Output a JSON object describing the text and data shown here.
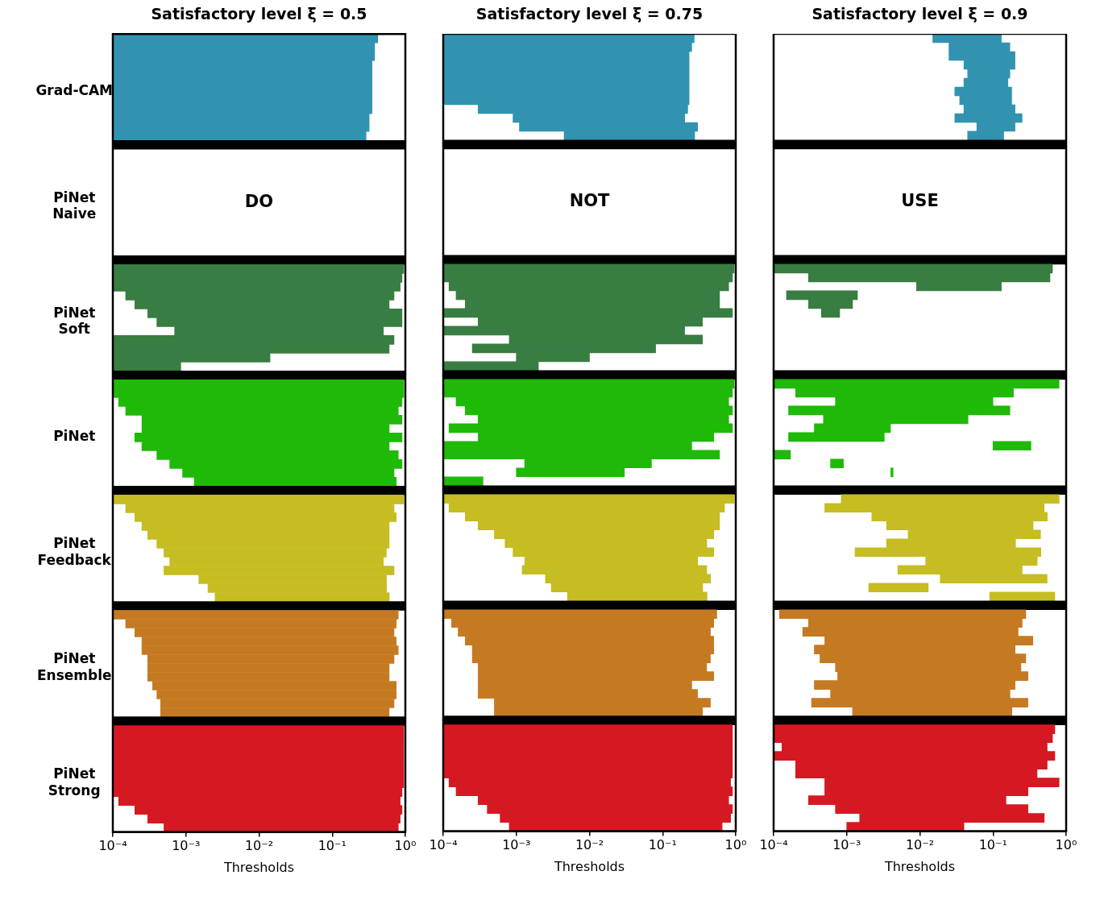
{
  "chart_data": [
    {
      "type": "bar",
      "orientation": "horizontal",
      "log": "x",
      "title": "Satisfactory level ξ = 0.5",
      "xlabel": "Thresholds",
      "annotations": [
        "DO"
      ],
      "xlim": [
        0.0001,
        1
      ],
      "xticks": [
        {
          "value": 0.0001,
          "label": "10⁻⁴"
        },
        {
          "value": 0.001,
          "label": "10⁻³"
        },
        {
          "value": 0.01,
          "label": "10⁻²"
        },
        {
          "value": 0.1,
          "label": "10⁻¹"
        },
        {
          "value": 1,
          "label": "10⁰"
        }
      ],
      "categories": [
        null,
        null,
        null,
        null,
        null,
        null,
        "Grad-CAM",
        null,
        null,
        null,
        null,
        null,
        null,
        null,
        null,
        null,
        null,
        null,
        null,
        "PiNet Naive",
        null,
        null,
        null,
        null,
        null,
        null,
        null,
        null,
        null,
        null,
        null,
        null,
        "PiNet Soft",
        null,
        null,
        null,
        null,
        null,
        null,
        null,
        null,
        null,
        null,
        null,
        null,
        "PiNet",
        null,
        null,
        null,
        null,
        null,
        null,
        null,
        null,
        null,
        null,
        null,
        null,
        "PiNet Feedback",
        null,
        null,
        null,
        null,
        null,
        null,
        null,
        null,
        null,
        null,
        null,
        null,
        "PiNet Ensemble",
        null,
        null,
        null,
        null,
        null,
        null,
        null,
        null,
        null,
        null,
        null,
        null,
        "PiNet Strong",
        null,
        null,
        null,
        null,
        null
      ],
      "values": [
        0.42,
        0.38,
        0.38,
        0.35,
        0.35,
        0.35,
        0.35,
        0.35,
        0.35,
        0.32,
        0.32,
        0.29,
        0.9999,
        null,
        null,
        null,
        null,
        null,
        null,
        null,
        null,
        null,
        null,
        null,
        null,
        0.9999,
        0.95,
        0.9,
        0.85,
        0.7,
        0.6,
        0.9,
        0.9,
        0.5,
        0.7,
        0.6,
        0.014,
        0.00075,
        0.9999,
        0.95,
        0.95,
        0.9,
        0.8,
        0.9,
        0.6,
        0.9,
        0.6,
        0.8,
        0.9,
        0.7,
        0.75,
        0.9999,
        0.95,
        0.7,
        0.75,
        0.6,
        0.6,
        0.6,
        0.55,
        0.5,
        0.7,
        0.55,
        0.55,
        0.6,
        0.9999,
        0.8,
        0.75,
        0.7,
        0.75,
        0.8,
        0.7,
        0.6,
        0.6,
        0.75,
        0.75,
        0.7,
        0.6,
        0.9999,
        0.95,
        0.95,
        0.95,
        0.95,
        0.95,
        0.95,
        0.95,
        0.9,
        0.85,
        0.9,
        0.85,
        0.8
      ],
      "base": [
        0.0001,
        0.0001,
        0.0001,
        0.0001,
        0.0001,
        0.0001,
        0.0001,
        0.0001,
        0.0001,
        0.0001,
        0.0001,
        0.0001,
        0.0001,
        null,
        null,
        null,
        null,
        null,
        null,
        null,
        null,
        null,
        null,
        null,
        null,
        0.0001,
        0.0001,
        0.0001,
        0.0001,
        0.00015,
        0.0002,
        0.0003,
        0.0004,
        0.0007,
        0.0001,
        0.0001,
        0.0001,
        0.0001,
        0.0001,
        0.0001,
        0.0001,
        0.00012,
        0.00015,
        0.00025,
        0.00025,
        0.0002,
        0.00025,
        0.0004,
        0.0006,
        0.0009,
        0.0013,
        0.0001,
        0.0001,
        0.00015,
        0.0002,
        0.00025,
        0.0003,
        0.0004,
        0.0005,
        0.0006,
        0.0005,
        0.0015,
        0.002,
        0.0025,
        0.0001,
        0.0001,
        0.00015,
        0.0002,
        0.00025,
        0.00025,
        0.0003,
        0.0003,
        0.0003,
        0.00035,
        0.0004,
        0.00045,
        0.00045,
        0.0001,
        0.0001,
        0.0001,
        0.0001,
        0.0001,
        0.0001,
        0.0001,
        0.0001,
        0.0001,
        0.00012,
        0.0002,
        0.0003,
        0.0005
      ],
      "colors": [
        "#3293b1",
        "#3293b1",
        "#3293b1",
        "#3293b1",
        "#3293b1",
        "#3293b1",
        "#3293b1",
        "#3293b1",
        "#3293b1",
        "#3293b1",
        "#3293b1",
        "#3293b1",
        "#000000",
        null,
        null,
        null,
        null,
        null,
        null,
        null,
        null,
        null,
        null,
        null,
        null,
        "#000000",
        "#387d41",
        "#387d41",
        "#387d41",
        "#387d41",
        "#387d41",
        "#387d41",
        "#387d41",
        "#387d41",
        "#387d41",
        "#387d41",
        "#387d41",
        "#387d41",
        "#000000",
        "#1fb908",
        "#1fb908",
        "#1fb908",
        "#1fb908",
        "#1fb908",
        "#1fb908",
        "#1fb908",
        "#1fb908",
        "#1fb908",
        "#1fb908",
        "#1fb908",
        "#1fb908",
        "#000000",
        "#c5bd22",
        "#c5bd22",
        "#c5bd22",
        "#c5bd22",
        "#c5bd22",
        "#c5bd22",
        "#c5bd22",
        "#c5bd22",
        "#c5bd22",
        "#c5bd22",
        "#c5bd22",
        "#c5bd22",
        "#000000",
        "#c57a22",
        "#c57a22",
        "#c57a22",
        "#c57a22",
        "#c57a22",
        "#c57a22",
        "#c57a22",
        "#c57a22",
        "#c57a22",
        "#c57a22",
        "#c57a22",
        "#c57a22",
        "#000000",
        "#d51922",
        "#d51922",
        "#d51922",
        "#d51922",
        "#d51922",
        "#d51922",
        "#d51922",
        "#d51922",
        "#d51922",
        "#d51922",
        "#d51922",
        "#d51922"
      ]
    },
    {
      "type": "bar",
      "orientation": "horizontal",
      "log": "x",
      "title": "Satisfactory level ξ = 0.75",
      "xlabel": "Thresholds",
      "annotations": [
        "NOT"
      ],
      "xlim": [
        0.0001,
        1
      ],
      "xticks": [
        {
          "value": 0.0001,
          "label": "10⁻⁴"
        },
        {
          "value": 0.001,
          "label": "10⁻³"
        },
        {
          "value": 0.01,
          "label": "10⁻²"
        },
        {
          "value": 0.1,
          "label": "10⁻¹"
        },
        {
          "value": 1,
          "label": "10⁰"
        }
      ],
      "tick_labels": "x",
      "categories": [
        null,
        null,
        null,
        null,
        null,
        null,
        null,
        null,
        null,
        null,
        null,
        null,
        null,
        null,
        null,
        null,
        null,
        null,
        null,
        null,
        null,
        null,
        null,
        null,
        null,
        null,
        null,
        null,
        null,
        null,
        null,
        null,
        null,
        null,
        null,
        null,
        null,
        null,
        null,
        null,
        null,
        null,
        null,
        null,
        null,
        null,
        null,
        null,
        null,
        null,
        null,
        null,
        null,
        null,
        null,
        null,
        null,
        null,
        null,
        null,
        null,
        null,
        null,
        null,
        null,
        null,
        null,
        null,
        null,
        null,
        null,
        null,
        null,
        null,
        null,
        null,
        null,
        null,
        null,
        null,
        null,
        null,
        null,
        null,
        null,
        null,
        null,
        null,
        null,
        null
      ],
      "values": [
        0.27,
        0.25,
        0.23,
        0.23,
        0.23,
        0.23,
        0.23,
        0.23,
        0.22,
        0.2,
        0.3,
        0.27,
        0.9999,
        null,
        null,
        null,
        null,
        null,
        null,
        null,
        null,
        null,
        null,
        null,
        null,
        0.9999,
        0.95,
        0.9,
        0.8,
        0.6,
        0.6,
        0.9,
        0.35,
        0.2,
        0.35,
        0.08,
        0.009,
        0.0019,
        0.9999,
        0.95,
        0.9,
        0.8,
        0.9,
        0.8,
        0.9,
        0.5,
        0.25,
        0.6,
        0.069,
        0.029,
        0.00025,
        0.9999,
        0.95,
        0.7,
        0.6,
        0.6,
        0.5,
        0.4,
        0.5,
        0.3,
        0.4,
        0.45,
        0.35,
        0.4,
        0.9999,
        0.55,
        0.5,
        0.45,
        0.5,
        0.5,
        0.45,
        0.4,
        0.5,
        0.25,
        0.3,
        0.45,
        0.35,
        0.9999,
        0.9,
        0.9,
        0.9,
        0.9,
        0.9,
        0.9,
        0.85,
        0.9,
        0.8,
        0.9,
        0.85,
        0.65
      ],
      "base": [
        0.0001,
        0.0001,
        0.0001,
        0.0001,
        0.0001,
        0.0001,
        0.0001,
        0.0001,
        0.0003,
        0.0009,
        0.0011,
        0.0045,
        0.0001,
        null,
        null,
        null,
        null,
        null,
        null,
        null,
        null,
        null,
        null,
        null,
        null,
        0.0001,
        0.0001,
        0.0001,
        0.00012,
        0.00015,
        0.0002,
        0.0001,
        0.0003,
        0.0001,
        0.0008,
        0.00025,
        0.001,
        0.0001,
        0.0001,
        0.0001,
        0.0001,
        0.00015,
        0.0002,
        0.0003,
        0.00012,
        0.0003,
        0.0001,
        0.0001,
        0.0013,
        0.001,
        0.0001,
        0.0001,
        0.0001,
        0.00012,
        0.0002,
        0.0003,
        0.0005,
        0.0007,
        0.0009,
        0.0013,
        0.0012,
        0.0025,
        0.003,
        0.005,
        0.0001,
        0.0001,
        0.00013,
        0.00016,
        0.0002,
        0.00025,
        0.00025,
        0.0003,
        0.0003,
        0.0003,
        0.0003,
        0.0005,
        0.0005,
        0.0001,
        0.0001,
        0.0001,
        0.0001,
        0.0001,
        0.0001,
        0.0001,
        0.00012,
        0.00015,
        0.0003,
        0.0004,
        0.0006,
        0.0008
      ],
      "colors": [
        "#3293b1",
        "#3293b1",
        "#3293b1",
        "#3293b1",
        "#3293b1",
        "#3293b1",
        "#3293b1",
        "#3293b1",
        "#3293b1",
        "#3293b1",
        "#3293b1",
        "#3293b1",
        "#000000",
        null,
        null,
        null,
        null,
        null,
        null,
        null,
        null,
        null,
        null,
        null,
        null,
        "#000000",
        "#387d41",
        "#387d41",
        "#387d41",
        "#387d41",
        "#387d41",
        "#387d41",
        "#387d41",
        "#387d41",
        "#387d41",
        "#387d41",
        "#387d41",
        "#387d41",
        "#000000",
        "#1fb908",
        "#1fb908",
        "#1fb908",
        "#1fb908",
        "#1fb908",
        "#1fb908",
        "#1fb908",
        "#1fb908",
        "#1fb908",
        "#1fb908",
        "#1fb908",
        "#1fb908",
        "#000000",
        "#c5bd22",
        "#c5bd22",
        "#c5bd22",
        "#c5bd22",
        "#c5bd22",
        "#c5bd22",
        "#c5bd22",
        "#c5bd22",
        "#c5bd22",
        "#c5bd22",
        "#c5bd22",
        "#c5bd22",
        "#000000",
        "#c57a22",
        "#c57a22",
        "#c57a22",
        "#c57a22",
        "#c57a22",
        "#c57a22",
        "#c57a22",
        "#c57a22",
        "#c57a22",
        "#c57a22",
        "#c57a22",
        "#c57a22",
        "#000000",
        "#d51922",
        "#d51922",
        "#d51922",
        "#d51922",
        "#d51922",
        "#d51922",
        "#d51922",
        "#d51922",
        "#d51922",
        "#d51922",
        "#d51922",
        "#d51922"
      ]
    },
    {
      "type": "bar",
      "orientation": "horizontal",
      "log": "x",
      "title": "Satisfactory level ξ = 0.9",
      "xlabel": "Thresholds",
      "annotations": [
        "USE"
      ],
      "xlim": [
        0.0001,
        1
      ],
      "xticks": [
        {
          "value": 0.0001,
          "label": "10⁻⁴"
        },
        {
          "value": 0.001,
          "label": "10⁻³"
        },
        {
          "value": 0.01,
          "label": "10⁻²"
        },
        {
          "value": 0.1,
          "label": "10⁻¹"
        },
        {
          "value": 1,
          "label": "10⁰"
        }
      ],
      "tick_labels": "x",
      "categories": [
        null,
        null,
        null,
        null,
        null,
        null,
        null,
        null,
        null,
        null,
        null,
        null,
        null,
        null,
        null,
        null,
        null,
        null,
        null,
        null,
        null,
        null,
        null,
        null,
        null,
        null,
        null,
        null,
        null,
        null,
        null,
        null,
        null,
        null,
        null,
        null,
        null,
        null,
        null,
        null,
        null,
        null,
        null,
        null,
        null,
        null,
        null,
        null,
        null,
        null,
        null,
        null,
        null,
        null,
        null,
        null,
        null,
        null,
        null,
        null,
        null,
        null,
        null,
        null,
        null,
        null,
        null,
        null,
        null,
        null,
        null,
        null,
        null,
        null,
        null,
        null,
        null,
        null,
        null,
        null,
        null,
        null,
        null,
        null,
        null,
        null,
        null,
        null,
        null,
        null
      ],
      "values": [
        0.115,
        0.145,
        0.175,
        0.16,
        0.125,
        0.12,
        0.15,
        0.145,
        0.16,
        0.22,
        0.14,
        0.095,
        0.9999,
        null,
        null,
        null,
        null,
        null,
        null,
        null,
        null,
        null,
        null,
        null,
        null,
        0.9999,
        0.65,
        0.6,
        0.121,
        0.00125,
        0.0009,
        0.00035,
        null,
        null,
        null,
        null,
        null,
        null,
        0.9999,
        0.8,
        0.19,
        0.099,
        0.17,
        0.045,
        0.0036,
        0.0031,
        0.23,
        7e-05,
        0.0003,
        0.0003,
        null,
        0.9999,
        0.8,
        0.5,
        0.55,
        0.35,
        0.44,
        0.2,
        0.45,
        0.39,
        0.245,
        0.53,
        0.011,
        0.61,
        0.9999,
        0.28,
        0.25,
        0.22,
        0.35,
        0.2,
        0.28,
        0.24,
        0.3,
        0.2,
        0.17,
        0.3,
        0.18,
        0.9999,
        0.7,
        0.65,
        0.55,
        0.7,
        0.55,
        0.4,
        0.8,
        0.3,
        0.15,
        0.3,
        0.5,
        0.039
      ],
      "base": [
        0.015,
        0.025,
        0.025,
        0.04,
        0.045,
        0.04,
        0.03,
        0.035,
        0.04,
        0.03,
        0.06,
        0.045,
        0.0001,
        null,
        null,
        null,
        null,
        null,
        null,
        null,
        null,
        null,
        null,
        null,
        null,
        0.0001,
        0.0001,
        0.0003,
        0.009,
        0.00015,
        0.0003,
        0.00045,
        null,
        null,
        null,
        null,
        null,
        null,
        0.0001,
        0.0001,
        0.0002,
        0.0007,
        0.00016,
        0.00048,
        0.00036,
        0.00016,
        0.1,
        0.0001,
        0.0006,
        0.004,
        null,
        0.0001,
        0.00084,
        0.0005,
        0.0022,
        0.0035,
        0.0069,
        0.0035,
        0.0013,
        0.012,
        0.005,
        0.019,
        0.002,
        0.09,
        0.0001,
        0.00012,
        0.0003,
        0.00025,
        0.0005,
        0.00036,
        0.00043,
        0.0007,
        0.00075,
        0.00036,
        0.0006,
        0.00033,
        0.0012,
        0.0001,
        0.0001,
        0.0001,
        0.00013,
        0.0001,
        0.0002,
        0.0002,
        0.0005,
        0.0005,
        0.0003,
        0.0007,
        0.0015,
        0.001
      ],
      "colors": [
        "#3293b1",
        "#3293b1",
        "#3293b1",
        "#3293b1",
        "#3293b1",
        "#3293b1",
        "#3293b1",
        "#3293b1",
        "#3293b1",
        "#3293b1",
        "#3293b1",
        "#3293b1",
        "#000000",
        null,
        null,
        null,
        null,
        null,
        null,
        null,
        null,
        null,
        null,
        null,
        null,
        "#000000",
        "#387d41",
        "#387d41",
        "#387d41",
        "#387d41",
        "#387d41",
        "#387d41",
        null,
        null,
        null,
        null,
        null,
        null,
        "#000000",
        "#1fb908",
        "#1fb908",
        "#1fb908",
        "#1fb908",
        "#1fb908",
        "#1fb908",
        "#1fb908",
        "#1fb908",
        "#1fb908",
        "#1fb908",
        "#1fb908",
        null,
        "#000000",
        "#c5bd22",
        "#c5bd22",
        "#c5bd22",
        "#c5bd22",
        "#c5bd22",
        "#c5bd22",
        "#c5bd22",
        "#c5bd22",
        "#c5bd22",
        "#c5bd22",
        "#c5bd22",
        "#c5bd22",
        "#000000",
        "#c57a22",
        "#c57a22",
        "#c57a22",
        "#c57a22",
        "#c57a22",
        "#c57a22",
        "#c57a22",
        "#c57a22",
        "#c57a22",
        "#c57a22",
        "#c57a22",
        "#c57a22",
        "#000000",
        "#d51922",
        "#d51922",
        "#d51922",
        "#d51922",
        "#d51922",
        "#d51922",
        "#d51922",
        "#d51922",
        "#d51922",
        "#d51922",
        "#d51922",
        "#d51922"
      ]
    }
  ]
}
